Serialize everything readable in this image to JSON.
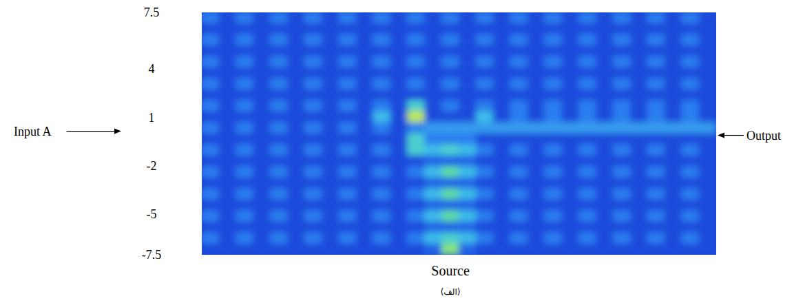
{
  "chart_data": {
    "type": "heatmap",
    "input_label": "Input A",
    "output_label": "Output",
    "x_label": "Source",
    "caption": "(الف)",
    "ylim": [
      -7.5,
      7.5
    ],
    "yticks": [
      7.5,
      4,
      1,
      -2,
      -5,
      -7.5
    ],
    "tick_labels": "y",
    "grid": false,
    "cells": [
      [
        3,
        1,
        3,
        1,
        3,
        1,
        3,
        1,
        3,
        1,
        3,
        1,
        3,
        1,
        3,
        1,
        3,
        1,
        3,
        1,
        3,
        1,
        3,
        1,
        3,
        1,
        3,
        1,
        3,
        1
      ],
      [
        1,
        1,
        1,
        1,
        1,
        1,
        1,
        1,
        1,
        1,
        1,
        1,
        1,
        1,
        1,
        1,
        1,
        1,
        1,
        1,
        1,
        1,
        1,
        1,
        1,
        1,
        1,
        1,
        1,
        1
      ],
      [
        3,
        1,
        3,
        1,
        3,
        1,
        3,
        1,
        3,
        1,
        3,
        1,
        3,
        1,
        3,
        1,
        3,
        1,
        3,
        1,
        3,
        1,
        3,
        1,
        3,
        1,
        3,
        1,
        3,
        1
      ],
      [
        1,
        1,
        1,
        1,
        1,
        1,
        1,
        1,
        1,
        1,
        1,
        1,
        1,
        1,
        1,
        1,
        1,
        1,
        1,
        1,
        1,
        1,
        1,
        1,
        1,
        1,
        1,
        1,
        1,
        1
      ],
      [
        3,
        1,
        3,
        1,
        3,
        1,
        3,
        1,
        3,
        1,
        3,
        1,
        3,
        1,
        3,
        1,
        3,
        1,
        3,
        1,
        3,
        1,
        3,
        1,
        3,
        1,
        3,
        1,
        3,
        1
      ],
      [
        1,
        1,
        1,
        1,
        1,
        1,
        1,
        1,
        1,
        1,
        1,
        1,
        1,
        1,
        1,
        1,
        1,
        1,
        1,
        1,
        1,
        1,
        1,
        1,
        1,
        1,
        1,
        1,
        1,
        1
      ],
      [
        3,
        1,
        3,
        1,
        3,
        1,
        3,
        1,
        3,
        1,
        3,
        1,
        3,
        1,
        3,
        1,
        3,
        1,
        3,
        1,
        3,
        1,
        3,
        1,
        3,
        1,
        3,
        1,
        3,
        1
      ],
      [
        1,
        1,
        1,
        1,
        1,
        1,
        1,
        1,
        1,
        1,
        1,
        1,
        1,
        1,
        1,
        1,
        1,
        1,
        1,
        1,
        1,
        1,
        1,
        1,
        1,
        1,
        1,
        1,
        1,
        1
      ],
      [
        3,
        1,
        3,
        1,
        3,
        1,
        3,
        1,
        3,
        1,
        3,
        1,
        6,
        1,
        3,
        1,
        3,
        1,
        3,
        1,
        3,
        1,
        3,
        1,
        3,
        1,
        3,
        1,
        3,
        1
      ],
      [
        1,
        1,
        1,
        1,
        1,
        1,
        1,
        1,
        1,
        1,
        5,
        1,
        9,
        1,
        1,
        1,
        5,
        1,
        3,
        1,
        3,
        1,
        3,
        1,
        3,
        1,
        3,
        1,
        3,
        1
      ],
      [
        3,
        1,
        3,
        1,
        3,
        1,
        3,
        1,
        3,
        1,
        3,
        1,
        3,
        4,
        4,
        4,
        4,
        4,
        4,
        4,
        4,
        4,
        4,
        4,
        4,
        4,
        4,
        4,
        4,
        4
      ],
      [
        1,
        1,
        1,
        1,
        1,
        1,
        1,
        1,
        1,
        1,
        1,
        1,
        6,
        3,
        3,
        3,
        1,
        1,
        1,
        1,
        1,
        1,
        1,
        1,
        1,
        1,
        1,
        1,
        1,
        1
      ],
      [
        3,
        1,
        3,
        1,
        3,
        1,
        3,
        1,
        3,
        1,
        3,
        1,
        6,
        5,
        6,
        5,
        3,
        1,
        3,
        1,
        3,
        1,
        3,
        1,
        3,
        1,
        3,
        1,
        3,
        1
      ],
      [
        1,
        1,
        1,
        1,
        1,
        1,
        1,
        1,
        1,
        1,
        1,
        1,
        1,
        2,
        2,
        2,
        1,
        1,
        1,
        1,
        1,
        1,
        1,
        1,
        1,
        1,
        1,
        1,
        1,
        1
      ],
      [
        3,
        1,
        3,
        1,
        3,
        1,
        3,
        1,
        3,
        1,
        3,
        1,
        3,
        5,
        7,
        5,
        3,
        1,
        3,
        1,
        3,
        1,
        3,
        1,
        3,
        1,
        3,
        1,
        3,
        1
      ],
      [
        1,
        1,
        1,
        1,
        1,
        1,
        1,
        1,
        1,
        1,
        1,
        1,
        1,
        2,
        2,
        2,
        1,
        1,
        1,
        1,
        1,
        1,
        1,
        1,
        1,
        1,
        1,
        1,
        1,
        1
      ],
      [
        3,
        1,
        3,
        1,
        3,
        1,
        3,
        1,
        3,
        1,
        3,
        1,
        3,
        5,
        7,
        5,
        3,
        1,
        3,
        1,
        3,
        1,
        3,
        1,
        3,
        1,
        3,
        1,
        3,
        1
      ],
      [
        1,
        1,
        1,
        1,
        1,
        1,
        1,
        1,
        1,
        1,
        1,
        1,
        1,
        2,
        2,
        2,
        1,
        1,
        1,
        1,
        1,
        1,
        1,
        1,
        1,
        1,
        1,
        1,
        1,
        1
      ],
      [
        3,
        1,
        3,
        1,
        3,
        1,
        3,
        1,
        3,
        1,
        3,
        1,
        3,
        5,
        7,
        5,
        3,
        1,
        3,
        1,
        3,
        1,
        3,
        1,
        3,
        1,
        3,
        1,
        3,
        1
      ],
      [
        1,
        1,
        1,
        1,
        1,
        1,
        1,
        1,
        1,
        1,
        1,
        1,
        1,
        2,
        2,
        2,
        1,
        1,
        1,
        1,
        1,
        1,
        1,
        1,
        1,
        1,
        1,
        1,
        1,
        1
      ],
      [
        3,
        1,
        3,
        1,
        3,
        1,
        3,
        1,
        3,
        1,
        3,
        1,
        3,
        5,
        6,
        5,
        3,
        1,
        3,
        1,
        3,
        1,
        3,
        1,
        3,
        1,
        3,
        1,
        3,
        1
      ],
      [
        1,
        1,
        1,
        1,
        1,
        1,
        1,
        1,
        1,
        1,
        1,
        1,
        1,
        2,
        8,
        2,
        1,
        1,
        1,
        1,
        1,
        1,
        1,
        1,
        1,
        1,
        1,
        1,
        1,
        1
      ]
    ]
  }
}
